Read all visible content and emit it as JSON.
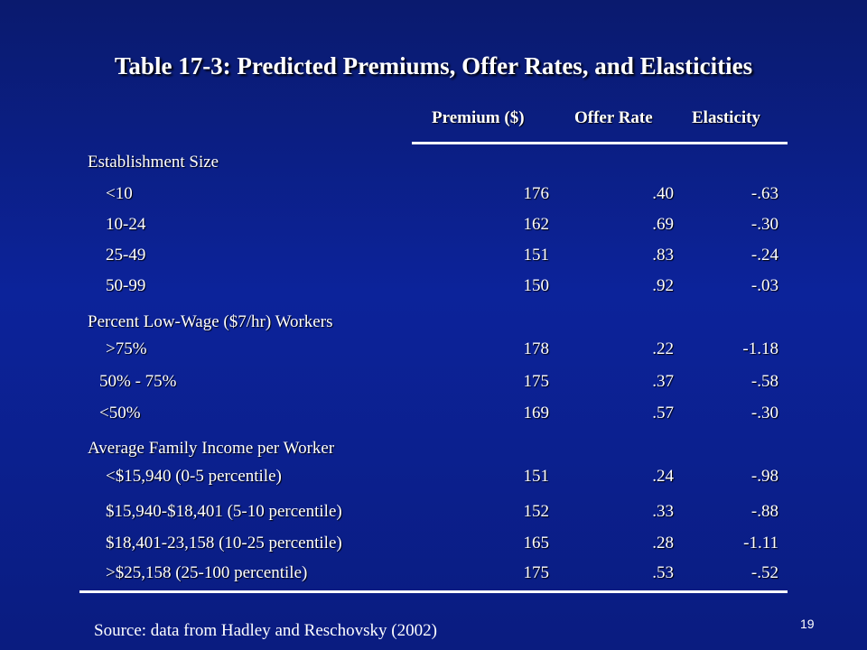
{
  "title": "Table 17-3:  Predicted Premiums, Offer Rates, and Elasticities",
  "headers": {
    "premium": "Premium ($)",
    "offer_rate": "Offer Rate",
    "elasticity": "Elasticity"
  },
  "sections": [
    {
      "label": "Establishment Size",
      "rows": [
        {
          "label": "<10",
          "premium": "176",
          "offer": ".40",
          "elasticity": "-.63"
        },
        {
          "label": "10-24",
          "premium": "162",
          "offer": ".69",
          "elasticity": "-.30"
        },
        {
          "label": "25-49",
          "premium": "151",
          "offer": ".83",
          "elasticity": "-.24"
        },
        {
          "label": "50-99",
          "premium": "150",
          "offer": ".92",
          "elasticity": "-.03"
        }
      ]
    },
    {
      "label": "Percent Low-Wage ($7/hr) Workers",
      "rows": [
        {
          "label": ">75%",
          "premium": "178",
          "offer": ".22",
          "elasticity": "-1.18"
        },
        {
          "label": "50% - 75%",
          "premium": "175",
          "offer": ".37",
          "elasticity": "-.58"
        },
        {
          "label": "<50%",
          "premium": "169",
          "offer": ".57",
          "elasticity": "-.30"
        }
      ]
    },
    {
      "label": "Average Family Income per Worker",
      "rows": [
        {
          "label": "<$15,940  (0-5 percentile)",
          "premium": "151",
          "offer": ".24",
          "elasticity": "-.98"
        },
        {
          "label": "$15,940-$18,401  (5-10 percentile)",
          "premium": "152",
          "offer": ".33",
          "elasticity": "-.88"
        },
        {
          "label": "$18,401-23,158  (10-25 percentile)",
          "premium": "165",
          "offer": ".28",
          "elasticity": "-1.11"
        },
        {
          "label": ">$25,158  (25-100 percentile)",
          "premium": "175",
          "offer": ".53",
          "elasticity": "-.52"
        }
      ]
    }
  ],
  "source": "Source:  data from Hadley and Reschovsky (2002)",
  "page_number": "19"
}
